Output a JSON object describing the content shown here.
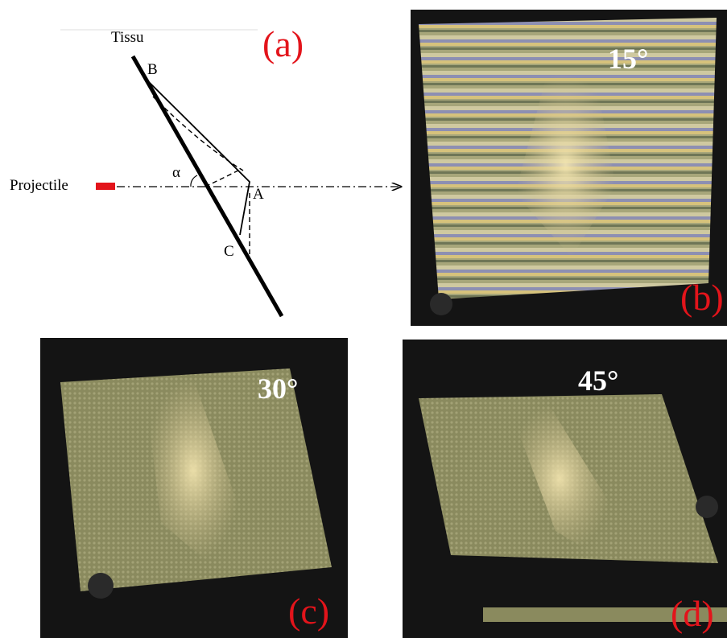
{
  "diagram": {
    "fabric_label": "Tissu",
    "panel_label": "(a)",
    "point_b": "B",
    "point_a": "A",
    "point_c": "C",
    "angle_symbol": "α",
    "projectile_label": "Projectile"
  },
  "photos": [
    {
      "angle": "15°",
      "label": "(b)"
    },
    {
      "angle": "30°",
      "label": "(c)"
    },
    {
      "angle": "45°",
      "label": "(d)"
    }
  ]
}
